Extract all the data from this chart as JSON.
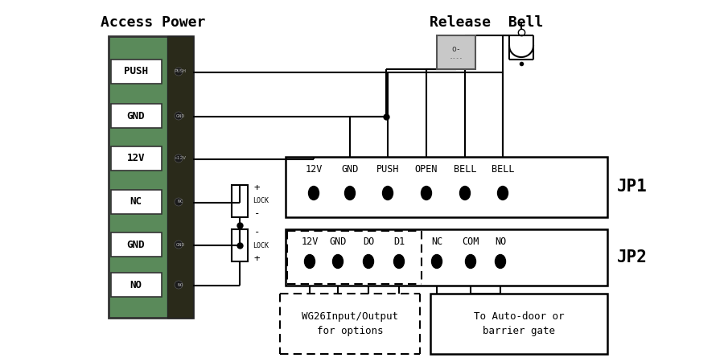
{
  "bg_color": "#ffffff",
  "line_color": "#000000",
  "fig_width": 9.0,
  "fig_height": 4.5,
  "access_power_text": "Access Power",
  "release_text": "Release",
  "bell_text": "Bell",
  "jp1_text": "JP1",
  "jp2_text": "JP2",
  "wg26_line1": "WG26Input/Output",
  "wg26_line2": "for options",
  "autodoor_line1": "To Auto-door or",
  "autodoor_line2": "barrier gate",
  "lock_text": "LOCK",
  "font_family": "monospace",
  "jp1_labels": [
    "12V",
    "GND",
    "PUSH",
    "OPEN",
    "BELL",
    "BELL"
  ],
  "jp2_labels": [
    "12V",
    "GND",
    "DO",
    "D1",
    "NC",
    "COM",
    "NO"
  ],
  "board_labels": [
    "PUSH",
    "GND",
    "12V",
    "NC",
    "GND",
    "NO"
  ],
  "strip_labels": [
    "PUSH",
    "GND",
    "+12V",
    "NC",
    "GND",
    "NO"
  ],
  "pcb_green": "#5a8a5a",
  "pcb_dark": "#3a5a3a",
  "strip_color": "#2a2a1a",
  "release_gray": "#c8c8c8"
}
